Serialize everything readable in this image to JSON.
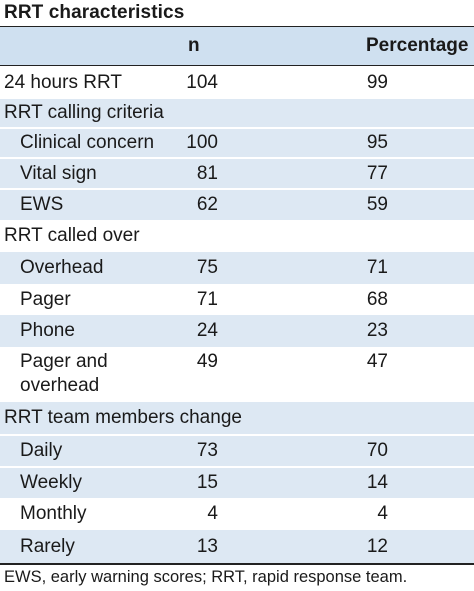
{
  "table": {
    "title": "RRT characteristics",
    "columns": {
      "n": "n",
      "percentage": "Percentage"
    },
    "rows": [
      {
        "label": "24 hours RRT",
        "n": "104",
        "pct": "99"
      },
      {
        "label": "RRT calling criteria",
        "n": "",
        "pct": ""
      },
      {
        "label": "Clinical concern",
        "n": "100",
        "pct": "95"
      },
      {
        "label": "Vital sign",
        "n": "81",
        "pct": "77"
      },
      {
        "label": "EWS",
        "n": "62",
        "pct": "59"
      },
      {
        "label": "RRT called over",
        "n": "",
        "pct": ""
      },
      {
        "label": "Overhead",
        "n": "75",
        "pct": "71"
      },
      {
        "label": "Pager",
        "n": "71",
        "pct": "68"
      },
      {
        "label": "Phone",
        "n": "24",
        "pct": "23"
      },
      {
        "label": "Pager and overhead",
        "n": "49",
        "pct": "47"
      },
      {
        "label": "RRT team members change",
        "n": "",
        "pct": ""
      },
      {
        "label": "Daily",
        "n": "73",
        "pct": "70"
      },
      {
        "label": "Weekly",
        "n": "15",
        "pct": "14"
      },
      {
        "label": "Monthly",
        "n": "4",
        "pct": "4"
      },
      {
        "label": "Rarely",
        "n": "13",
        "pct": "12"
      }
    ],
    "footnote": "EWS, early warning scores; RRT, rapid response team."
  },
  "colors": {
    "header_bg": "#cfe0f0",
    "shaded_bg": "#dde8f3",
    "rule": "#222222"
  }
}
